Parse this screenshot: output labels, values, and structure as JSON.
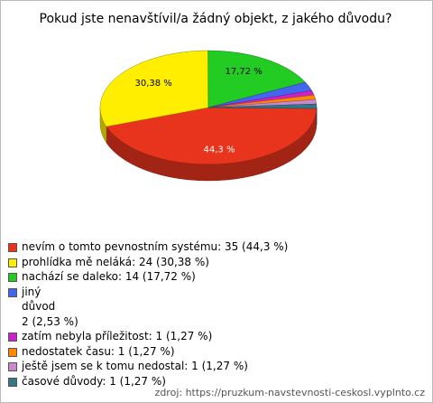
{
  "chart_data": {
    "type": "pie3d",
    "title": "Pokud jste nenavštívil/a žádný objekt, z jakého důvodu?",
    "categories": [
      "nevím o tomto pevnostním systému: 35 (44,3 %)",
      "prohlídka mě neláká: 24 (30,38 %)",
      "nachází se daleko: 14 (17,72 %)",
      "jiný\ndůvod\n2 (2,53 %)",
      "zatím nebyla příležitost: 1 (1,27 %)",
      "nedostatek času: 1 (1,27 %)",
      "ještě jsem se k tomu nedostal: 1 (1,27 %)",
      "časové důvody: 1 (1,27 %)"
    ],
    "values": [
      44.3,
      30.38,
      17.72,
      2.53,
      1.27,
      1.27,
      1.27,
      1.27
    ],
    "value_labels": [
      "44,3 %",
      "30,38 %",
      "17,72 %",
      null,
      null,
      null,
      null,
      null
    ],
    "colors": [
      "#e8341c",
      "#ffee00",
      "#22cc22",
      "#4466ee",
      "#cc22cc",
      "#ff8800",
      "#cc88cc",
      "#337788"
    ],
    "source": "zdroj: https://pruzkum-navstevnosti-ceskosl.vyplnto.cz"
  }
}
